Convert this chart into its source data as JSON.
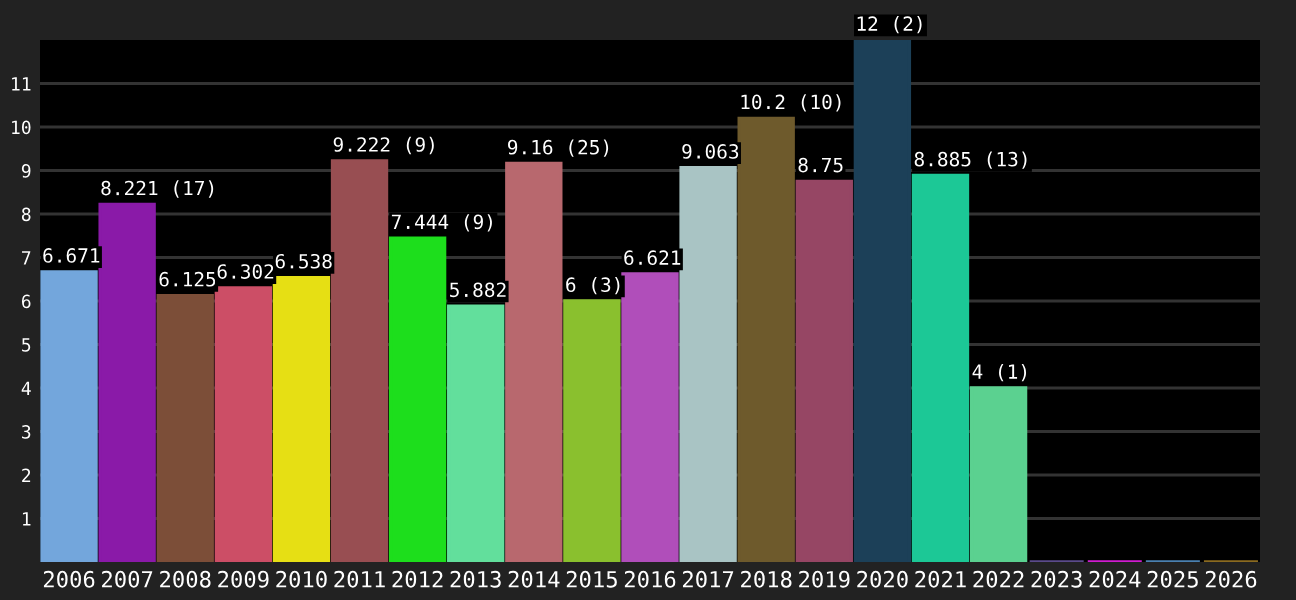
{
  "chart_data": {
    "type": "bar",
    "categories": [
      "2006",
      "2007",
      "2008",
      "2009",
      "2010",
      "2011",
      "2012",
      "2013",
      "2014",
      "2015",
      "2016",
      "2017",
      "2018",
      "2019",
      "2020",
      "2021",
      "2022",
      "2023",
      "2024",
      "2025",
      "2026"
    ],
    "values": [
      6.671,
      8.221,
      6.125,
      6.302,
      6.538,
      9.222,
      7.444,
      5.882,
      9.16,
      6,
      6.621,
      9.063,
      10.2,
      8.75,
      12,
      8.885,
      4,
      0,
      0,
      0,
      0
    ],
    "colors": [
      "#73a6dc",
      "#8a1aa8",
      "#7c4e38",
      "#cc4e66",
      "#e6df14",
      "#984e52",
      "#1dde1c",
      "#62df9c",
      "#b8686e",
      "#8ac02e",
      "#b04eba",
      "#a9c4c4",
      "#6e5a2c",
      "#964664",
      "#1c4058",
      "#1cc896",
      "#5bd190",
      "#5a4a8a",
      "#d01cd0",
      "#4a80b0",
      "#8a6a20"
    ],
    "value_labels": [
      "6.671",
      "8.221 (17)",
      "6.125",
      "6.302",
      "6.538",
      "9.222 (9)",
      "7.444 (9)",
      "5.882",
      "9.16 (25)",
      "6 (3)",
      "6.621",
      "9.063",
      "10.2 (10)",
      "8.75",
      "12 (2)",
      "8.885 (13)",
      "4 (1)",
      null,
      null,
      null,
      null
    ],
    "ylim": [
      0,
      12
    ],
    "yticks": [
      1,
      2,
      3,
      4,
      5,
      6,
      7,
      8,
      9,
      10,
      11
    ],
    "grid": "y"
  }
}
